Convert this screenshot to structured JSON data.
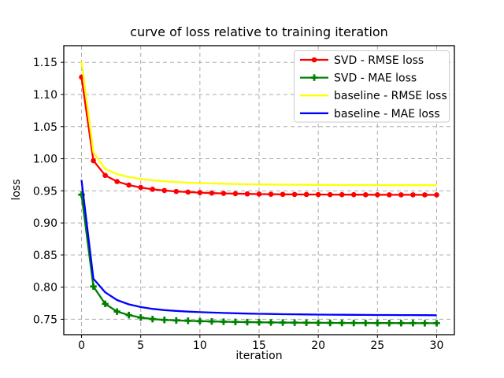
{
  "window": {
    "background": "#ffffff"
  },
  "styles": {
    "grid_color": "#ababab",
    "axis_color": "#000000",
    "text_color": "#000000",
    "legend_edge_color": "#cccccc",
    "legend_bg_color": "#ffffff"
  },
  "chart_data": {
    "type": "line",
    "title": "curve of loss relative to training iteration",
    "xlabel": "iteration",
    "ylabel": "loss",
    "xlim": [
      -1.5,
      31.5
    ],
    "ylim": [
      0.726,
      1.176
    ],
    "xticks": [
      0,
      5,
      10,
      15,
      20,
      25,
      30
    ],
    "yticks": [
      0.75,
      0.8,
      0.85,
      0.9,
      0.95,
      1.0,
      1.05,
      1.1,
      1.15
    ],
    "grid": true,
    "grid_style": "dashed",
    "legend_position": "upper right",
    "x": [
      0,
      1,
      2,
      3,
      4,
      5,
      6,
      7,
      8,
      9,
      10,
      11,
      12,
      13,
      14,
      15,
      16,
      17,
      18,
      19,
      20,
      21,
      22,
      23,
      24,
      25,
      26,
      27,
      28,
      29,
      30
    ],
    "series": [
      {
        "name": "SVD - RMSE loss",
        "color": "#ff0000",
        "marker": "circle",
        "values": [
          1.127,
          0.997,
          0.974,
          0.9645,
          0.959,
          0.9552,
          0.9524,
          0.9505,
          0.949,
          0.948,
          0.9472,
          0.9465,
          0.946,
          0.9456,
          0.9452,
          0.9449,
          0.9447,
          0.9445,
          0.9444,
          0.9443,
          0.9442,
          0.9441,
          0.944,
          0.944,
          0.9439,
          0.9439,
          0.9438,
          0.9438,
          0.9438,
          0.9437,
          0.9437
        ]
      },
      {
        "name": "SVD - MAE loss",
        "color": "#008000",
        "marker": "plus",
        "values": [
          0.944,
          0.801,
          0.774,
          0.762,
          0.7565,
          0.7527,
          0.7503,
          0.749,
          0.7482,
          0.7476,
          0.7471,
          0.7466,
          0.7462,
          0.7459,
          0.7456,
          0.7453,
          0.7451,
          0.7449,
          0.7448,
          0.7446,
          0.7445,
          0.7444,
          0.7443,
          0.7442,
          0.7442,
          0.7441,
          0.7441,
          0.744,
          0.744,
          0.7439,
          0.7439
        ]
      },
      {
        "name": "baseline - RMSE loss",
        "color": "#ffff00",
        "marker": "none",
        "values": [
          1.152,
          1.01,
          0.984,
          0.976,
          0.9715,
          0.9685,
          0.9663,
          0.9648,
          0.9637,
          0.9628,
          0.9621,
          0.9615,
          0.961,
          0.9606,
          0.9603,
          0.96,
          0.9598,
          0.9596,
          0.9594,
          0.9593,
          0.9592,
          0.9591,
          0.959,
          0.9589,
          0.9589,
          0.9588,
          0.9588,
          0.9587,
          0.9587,
          0.9587,
          0.9586
        ]
      },
      {
        "name": "baseline - MAE loss",
        "color": "#0000ff",
        "marker": "none",
        "values": [
          0.967,
          0.813,
          0.792,
          0.78,
          0.7732,
          0.769,
          0.7662,
          0.7643,
          0.763,
          0.7619,
          0.7611,
          0.7604,
          0.7598,
          0.7593,
          0.7589,
          0.7585,
          0.7582,
          0.7579,
          0.7577,
          0.7575,
          0.7573,
          0.7572,
          0.757,
          0.7569,
          0.7568,
          0.7567,
          0.7566,
          0.7565,
          0.7565,
          0.7564,
          0.7563
        ]
      }
    ]
  }
}
